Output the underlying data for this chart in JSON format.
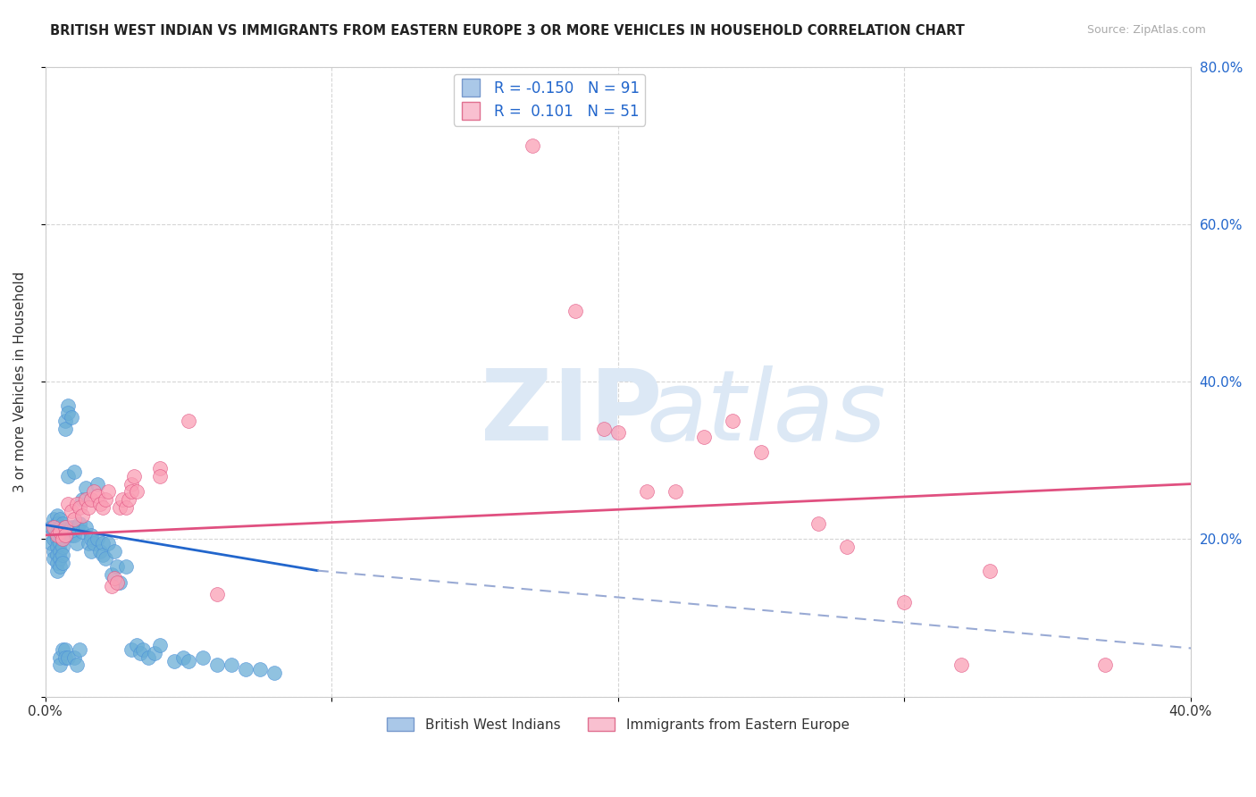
{
  "title": "BRITISH WEST INDIAN VS IMMIGRANTS FROM EASTERN EUROPE 3 OR MORE VEHICLES IN HOUSEHOLD CORRELATION CHART",
  "source": "Source: ZipAtlas.com",
  "ylabel": "3 or more Vehicles in Household",
  "xlim": [
    0.0,
    0.4
  ],
  "ylim": [
    0.0,
    0.8
  ],
  "blue_color": "#6baed6",
  "blue_edge": "#4a90d9",
  "pink_color": "#fa9fb5",
  "pink_edge": "#e05080",
  "blue_line_color": "#2266cc",
  "blue_dash_color": "#99aad4",
  "pink_line_color": "#e05080",
  "grid_color": "#cccccc",
  "background_color": "#ffffff",
  "watermark_color": "#dce8f5",
  "blue_scatter": [
    [
      0.002,
      0.215
    ],
    [
      0.002,
      0.195
    ],
    [
      0.003,
      0.225
    ],
    [
      0.003,
      0.21
    ],
    [
      0.003,
      0.2
    ],
    [
      0.003,
      0.185
    ],
    [
      0.003,
      0.175
    ],
    [
      0.004,
      0.23
    ],
    [
      0.004,
      0.22
    ],
    [
      0.004,
      0.21
    ],
    [
      0.004,
      0.2
    ],
    [
      0.004,
      0.19
    ],
    [
      0.004,
      0.18
    ],
    [
      0.004,
      0.17
    ],
    [
      0.004,
      0.16
    ],
    [
      0.005,
      0.225
    ],
    [
      0.005,
      0.215
    ],
    [
      0.005,
      0.205
    ],
    [
      0.005,
      0.195
    ],
    [
      0.005,
      0.185
    ],
    [
      0.005,
      0.175
    ],
    [
      0.005,
      0.165
    ],
    [
      0.005,
      0.05
    ],
    [
      0.005,
      0.04
    ],
    [
      0.006,
      0.22
    ],
    [
      0.006,
      0.21
    ],
    [
      0.006,
      0.2
    ],
    [
      0.006,
      0.19
    ],
    [
      0.006,
      0.18
    ],
    [
      0.006,
      0.17
    ],
    [
      0.006,
      0.06
    ],
    [
      0.007,
      0.35
    ],
    [
      0.007,
      0.34
    ],
    [
      0.007,
      0.215
    ],
    [
      0.007,
      0.205
    ],
    [
      0.007,
      0.06
    ],
    [
      0.007,
      0.05
    ],
    [
      0.008,
      0.37
    ],
    [
      0.008,
      0.36
    ],
    [
      0.008,
      0.21
    ],
    [
      0.008,
      0.28
    ],
    [
      0.008,
      0.05
    ],
    [
      0.009,
      0.355
    ],
    [
      0.009,
      0.215
    ],
    [
      0.009,
      0.205
    ],
    [
      0.01,
      0.285
    ],
    [
      0.01,
      0.215
    ],
    [
      0.01,
      0.205
    ],
    [
      0.01,
      0.05
    ],
    [
      0.011,
      0.215
    ],
    [
      0.011,
      0.195
    ],
    [
      0.011,
      0.04
    ],
    [
      0.012,
      0.22
    ],
    [
      0.012,
      0.06
    ],
    [
      0.013,
      0.25
    ],
    [
      0.013,
      0.21
    ],
    [
      0.014,
      0.265
    ],
    [
      0.014,
      0.215
    ],
    [
      0.015,
      0.195
    ],
    [
      0.016,
      0.205
    ],
    [
      0.016,
      0.2
    ],
    [
      0.016,
      0.185
    ],
    [
      0.017,
      0.195
    ],
    [
      0.018,
      0.27
    ],
    [
      0.018,
      0.2
    ],
    [
      0.019,
      0.185
    ],
    [
      0.02,
      0.195
    ],
    [
      0.02,
      0.18
    ],
    [
      0.021,
      0.175
    ],
    [
      0.022,
      0.195
    ],
    [
      0.023,
      0.155
    ],
    [
      0.024,
      0.185
    ],
    [
      0.025,
      0.165
    ],
    [
      0.026,
      0.145
    ],
    [
      0.028,
      0.165
    ],
    [
      0.03,
      0.06
    ],
    [
      0.032,
      0.065
    ],
    [
      0.033,
      0.055
    ],
    [
      0.034,
      0.06
    ],
    [
      0.036,
      0.05
    ],
    [
      0.038,
      0.055
    ],
    [
      0.04,
      0.065
    ],
    [
      0.045,
      0.045
    ],
    [
      0.048,
      0.05
    ],
    [
      0.05,
      0.045
    ],
    [
      0.055,
      0.05
    ],
    [
      0.06,
      0.04
    ],
    [
      0.065,
      0.04
    ],
    [
      0.07,
      0.035
    ],
    [
      0.075,
      0.035
    ],
    [
      0.08,
      0.03
    ]
  ],
  "pink_scatter": [
    [
      0.003,
      0.215
    ],
    [
      0.004,
      0.205
    ],
    [
      0.005,
      0.21
    ],
    [
      0.006,
      0.2
    ],
    [
      0.007,
      0.215
    ],
    [
      0.007,
      0.205
    ],
    [
      0.008,
      0.245
    ],
    [
      0.009,
      0.235
    ],
    [
      0.01,
      0.225
    ],
    [
      0.011,
      0.245
    ],
    [
      0.012,
      0.24
    ],
    [
      0.013,
      0.23
    ],
    [
      0.014,
      0.25
    ],
    [
      0.015,
      0.24
    ],
    [
      0.016,
      0.25
    ],
    [
      0.017,
      0.26
    ],
    [
      0.018,
      0.255
    ],
    [
      0.019,
      0.245
    ],
    [
      0.02,
      0.24
    ],
    [
      0.021,
      0.25
    ],
    [
      0.022,
      0.26
    ],
    [
      0.023,
      0.14
    ],
    [
      0.024,
      0.15
    ],
    [
      0.025,
      0.145
    ],
    [
      0.026,
      0.24
    ],
    [
      0.027,
      0.25
    ],
    [
      0.028,
      0.24
    ],
    [
      0.029,
      0.25
    ],
    [
      0.03,
      0.27
    ],
    [
      0.03,
      0.26
    ],
    [
      0.031,
      0.28
    ],
    [
      0.032,
      0.26
    ],
    [
      0.04,
      0.29
    ],
    [
      0.04,
      0.28
    ],
    [
      0.05,
      0.35
    ],
    [
      0.06,
      0.13
    ],
    [
      0.17,
      0.7
    ],
    [
      0.185,
      0.49
    ],
    [
      0.195,
      0.34
    ],
    [
      0.2,
      0.335
    ],
    [
      0.21,
      0.26
    ],
    [
      0.22,
      0.26
    ],
    [
      0.23,
      0.33
    ],
    [
      0.24,
      0.35
    ],
    [
      0.25,
      0.31
    ],
    [
      0.27,
      0.22
    ],
    [
      0.28,
      0.19
    ],
    [
      0.3,
      0.12
    ],
    [
      0.32,
      0.04
    ],
    [
      0.33,
      0.16
    ],
    [
      0.37,
      0.04
    ]
  ],
  "blue_line": [
    [
      0.0,
      0.218
    ],
    [
      0.095,
      0.16
    ]
  ],
  "blue_line_dashed": [
    [
      0.095,
      0.16
    ],
    [
      0.42,
      0.055
    ]
  ],
  "pink_line": [
    [
      0.0,
      0.205
    ],
    [
      0.4,
      0.27
    ]
  ],
  "legend_r1": "R = -0.150",
  "legend_n1": "N = 91",
  "legend_r2": "R =  0.101",
  "legend_n2": "N = 51",
  "cat_label1": "British West Indians",
  "cat_label2": "Immigrants from Eastern Europe"
}
